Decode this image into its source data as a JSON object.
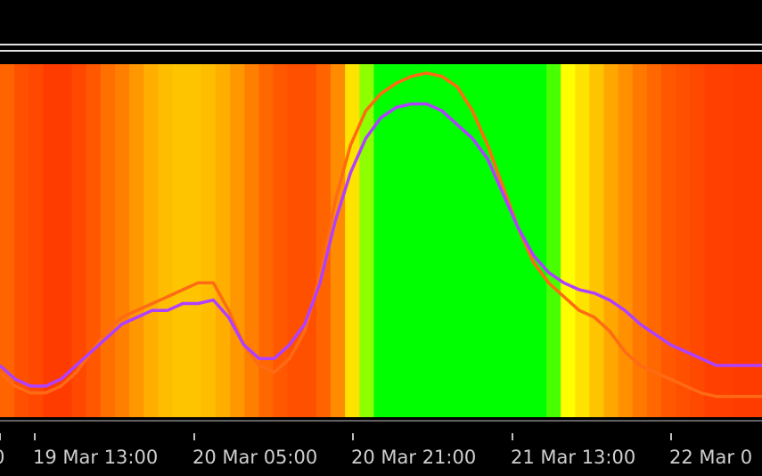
{
  "chart_data": {
    "type": "heatmap",
    "title": "",
    "xlabel": "",
    "ylabel": "",
    "grid": false,
    "x_start": "2024-03-19 06:00",
    "x_end": "2024-03-22 12:00",
    "x_ticks": [
      "0",
      "19 Mar 13:00",
      "20 Mar 05:00",
      "20 Mar 21:00",
      "21 Mar 13:00",
      "22 Mar 0"
    ],
    "heat_colors": {
      "low": "#ff0000",
      "mid_low": "#ff8c00",
      "mid": "#ffd700",
      "high_mid": "#ffff00",
      "high": "#00ff00"
    },
    "heat_values": [
      0.25,
      0.2,
      0.18,
      0.15,
      0.15,
      0.18,
      0.22,
      0.28,
      0.32,
      0.38,
      0.44,
      0.48,
      0.5,
      0.5,
      0.48,
      0.44,
      0.38,
      0.32,
      0.26,
      0.22,
      0.2,
      0.2,
      0.25,
      0.35,
      0.6,
      0.8,
      0.92,
      1,
      1,
      1,
      1,
      1,
      1,
      1,
      1,
      1,
      1,
      0.95,
      0.85,
      0.72,
      0.6,
      0.5,
      0.42,
      0.36,
      0.3,
      0.26,
      0.22,
      0.2,
      0.18,
      0.16,
      0.16,
      0.15,
      0.15
    ],
    "series": [
      {
        "name": "",
        "color": "#ff6a14",
        "values": [
          0.12,
          0.08,
          0.06,
          0.06,
          0.08,
          0.12,
          0.18,
          0.24,
          0.28,
          0.3,
          0.32,
          0.34,
          0.36,
          0.38,
          0.38,
          0.3,
          0.2,
          0.14,
          0.12,
          0.16,
          0.24,
          0.4,
          0.62,
          0.78,
          0.88,
          0.93,
          0.96,
          0.98,
          0.99,
          0.98,
          0.95,
          0.88,
          0.78,
          0.66,
          0.54,
          0.44,
          0.38,
          0.34,
          0.3,
          0.28,
          0.24,
          0.18,
          0.14,
          0.12,
          0.1,
          0.08,
          0.06,
          0.05,
          0.05,
          0.05,
          0.05
        ]
      },
      {
        "name": "",
        "color": "#b040ff",
        "values": [
          0.14,
          0.1,
          0.08,
          0.08,
          0.1,
          0.14,
          0.18,
          0.22,
          0.26,
          0.28,
          0.3,
          0.3,
          0.32,
          0.32,
          0.33,
          0.28,
          0.2,
          0.16,
          0.16,
          0.2,
          0.26,
          0.38,
          0.56,
          0.7,
          0.8,
          0.86,
          0.89,
          0.9,
          0.9,
          0.88,
          0.84,
          0.8,
          0.74,
          0.64,
          0.54,
          0.46,
          0.41,
          0.38,
          0.36,
          0.35,
          0.33,
          0.3,
          0.26,
          0.23,
          0.2,
          0.18,
          0.16,
          0.14,
          0.14,
          0.14,
          0.14
        ]
      }
    ]
  }
}
